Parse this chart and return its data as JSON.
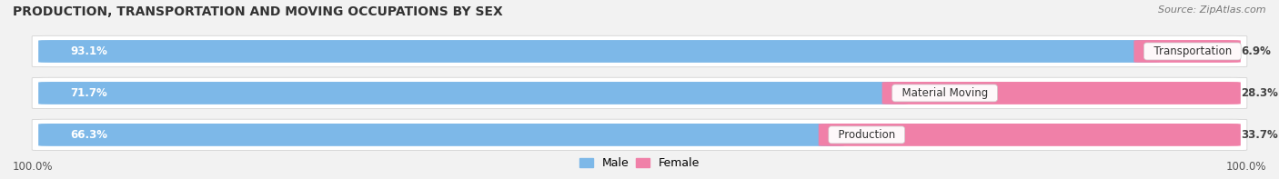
{
  "title": "PRODUCTION, TRANSPORTATION AND MOVING OCCUPATIONS BY SEX",
  "source": "Source: ZipAtlas.com",
  "categories": [
    "Transportation",
    "Material Moving",
    "Production"
  ],
  "male_values": [
    93.1,
    71.7,
    66.3
  ],
  "female_values": [
    6.9,
    28.3,
    33.7
  ],
  "male_color": "#7db8e8",
  "female_color": "#f080a8",
  "background_color": "#f2f2f2",
  "track_color": "#e0e0e8",
  "title_fontsize": 10,
  "source_fontsize": 8,
  "axis_label_fontsize": 8.5,
  "legend_fontsize": 9,
  "bar_label_fontsize": 8.5,
  "category_fontsize": 8.5,
  "x_left_label": "100.0%",
  "x_right_label": "100.0%"
}
